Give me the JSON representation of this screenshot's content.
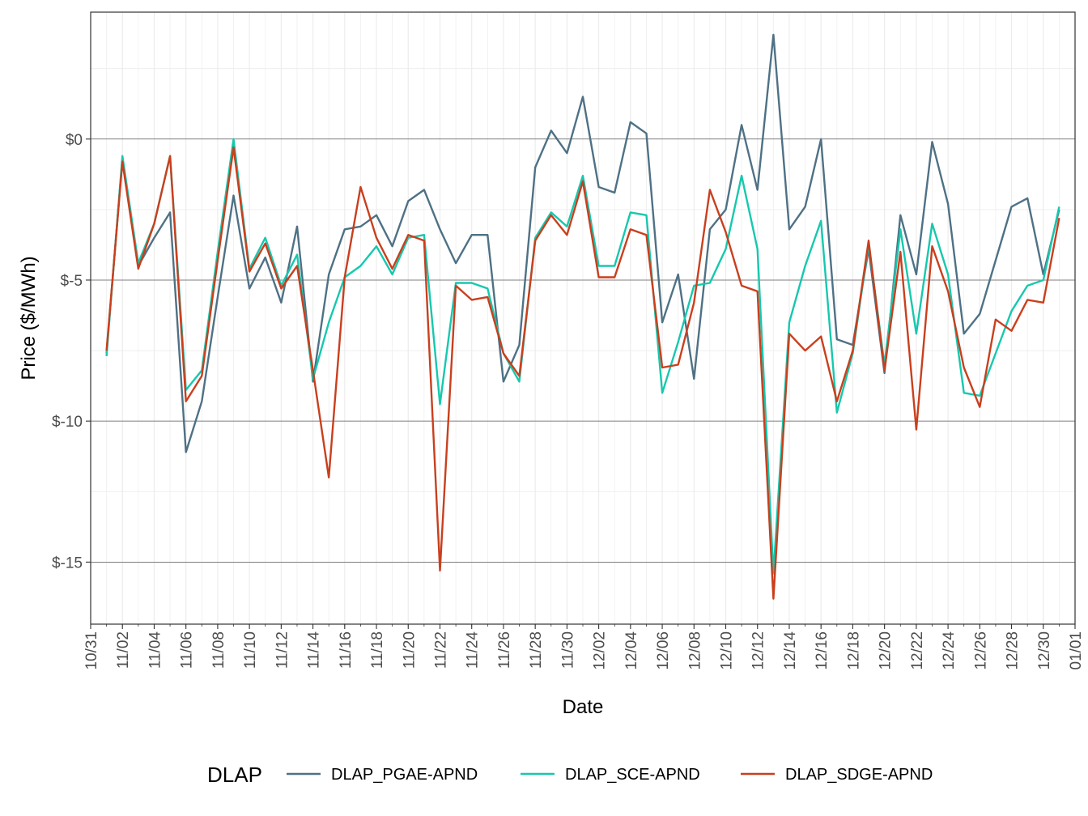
{
  "chart_data": {
    "type": "line",
    "xlabel": "Date",
    "ylabel": "Price ($/MWh)",
    "xlim": [
      "2023-10-31",
      "2024-01-01"
    ],
    "ylim": [
      -17.2,
      4.5
    ],
    "y_ticks": [
      0,
      -5,
      -10,
      -15
    ],
    "y_tick_labels": [
      "$0",
      "$-5",
      "$-10",
      "$-15"
    ],
    "x_tick_labels": [
      "10/31",
      "11/02",
      "11/04",
      "11/06",
      "11/08",
      "11/10",
      "11/12",
      "11/14",
      "11/16",
      "11/18",
      "11/20",
      "11/22",
      "11/24",
      "11/26",
      "11/28",
      "11/30",
      "12/02",
      "12/04",
      "12/06",
      "12/08",
      "12/10",
      "12/12",
      "12/14",
      "12/16",
      "12/18",
      "12/20",
      "12/22",
      "12/24",
      "12/26",
      "12/28",
      "12/30",
      "01/01"
    ],
    "grid": true,
    "legend": {
      "title": "DLAP",
      "position": "bottom"
    },
    "x": [
      "2023-11-01",
      "2023-11-02",
      "2023-11-03",
      "2023-11-04",
      "2023-11-05",
      "2023-11-06",
      "2023-11-07",
      "2023-11-08",
      "2023-11-09",
      "2023-11-10",
      "2023-11-11",
      "2023-11-12",
      "2023-11-13",
      "2023-11-14",
      "2023-11-15",
      "2023-11-16",
      "2023-11-17",
      "2023-11-18",
      "2023-11-19",
      "2023-11-20",
      "2023-11-21",
      "2023-11-22",
      "2023-11-23",
      "2023-11-24",
      "2023-11-25",
      "2023-11-26",
      "2023-11-27",
      "2023-11-28",
      "2023-11-29",
      "2023-11-30",
      "2023-12-01",
      "2023-12-02",
      "2023-12-03",
      "2023-12-04",
      "2023-12-05",
      "2023-12-06",
      "2023-12-07",
      "2023-12-08",
      "2023-12-09",
      "2023-12-10",
      "2023-12-11",
      "2023-12-12",
      "2023-12-13",
      "2023-12-14",
      "2023-12-15",
      "2023-12-16",
      "2023-12-17",
      "2023-12-18",
      "2023-12-19",
      "2023-12-20",
      "2023-12-21",
      "2023-12-22",
      "2023-12-23",
      "2023-12-24",
      "2023-12-25",
      "2023-12-26",
      "2023-12-27",
      "2023-12-28",
      "2023-12-29",
      "2023-12-30",
      "2023-12-31"
    ],
    "series": [
      {
        "name": "DLAP_PGAE-APND",
        "color": "#4e7185",
        "values": [
          -7.6,
          -0.7,
          -4.5,
          -3.5,
          -2.6,
          -11.1,
          -9.3,
          -5.6,
          -2.0,
          -5.3,
          -4.2,
          -5.8,
          -3.1,
          -8.6,
          -4.8,
          -3.2,
          -3.1,
          -2.7,
          -3.8,
          -2.2,
          -1.8,
          -3.2,
          -4.4,
          -3.4,
          -3.4,
          -8.6,
          -7.3,
          -1.0,
          0.3,
          -0.5,
          1.5,
          -1.7,
          -1.9,
          0.6,
          0.2,
          -6.5,
          -4.8,
          -8.5,
          -3.2,
          -2.5,
          0.5,
          -1.8,
          3.7,
          -3.2,
          -2.4,
          0.0,
          -7.1,
          -7.3,
          -3.9,
          -8.3,
          -2.7,
          -4.8,
          -0.1,
          -2.3,
          -6.9,
          -6.2,
          -4.3,
          -2.4,
          -2.1,
          -4.8,
          -2.5
        ]
      },
      {
        "name": "DLAP_SCE-APND",
        "color": "#16c8ae",
        "values": [
          -7.7,
          -0.6,
          -4.4,
          -3.0,
          -0.6,
          -8.9,
          -8.2,
          -4.0,
          0.0,
          -4.6,
          -3.5,
          -5.2,
          -4.1,
          -8.5,
          -6.5,
          -4.9,
          -4.5,
          -3.8,
          -4.8,
          -3.5,
          -3.4,
          -9.4,
          -5.1,
          -5.1,
          -5.3,
          -7.6,
          -8.6,
          -3.5,
          -2.6,
          -3.1,
          -1.3,
          -4.5,
          -4.5,
          -2.6,
          -2.7,
          -9.0,
          -7.2,
          -5.2,
          -5.1,
          -3.9,
          -1.3,
          -3.9,
          -15.4,
          -6.5,
          -4.5,
          -2.9,
          -9.7,
          -7.6,
          -3.7,
          -8.0,
          -3.2,
          -6.9,
          -3.0,
          -4.8,
          -9.0,
          -9.1,
          -7.6,
          -6.1,
          -5.2,
          -5.0,
          -2.4
        ]
      },
      {
        "name": "DLAP_SDGE-APND",
        "color": "#c93f1d",
        "values": [
          -7.5,
          -0.8,
          -4.6,
          -3.0,
          -0.6,
          -9.3,
          -8.4,
          -4.3,
          -0.3,
          -4.7,
          -3.7,
          -5.3,
          -4.5,
          -8.2,
          -12.0,
          -4.9,
          -1.7,
          -3.5,
          -4.6,
          -3.4,
          -3.6,
          -15.3,
          -5.2,
          -5.7,
          -5.6,
          -7.6,
          -8.4,
          -3.6,
          -2.7,
          -3.4,
          -1.5,
          -4.9,
          -4.9,
          -3.2,
          -3.4,
          -8.1,
          -8.0,
          -5.8,
          -1.8,
          -3.3,
          -5.2,
          -5.4,
          -16.3,
          -6.9,
          -7.5,
          -7.0,
          -9.3,
          -7.5,
          -3.6,
          -8.2,
          -4.0,
          -10.3,
          -3.8,
          -5.4,
          -8.1,
          -9.5,
          -6.4,
          -6.8,
          -5.7,
          -5.8,
          -2.8
        ]
      }
    ]
  }
}
